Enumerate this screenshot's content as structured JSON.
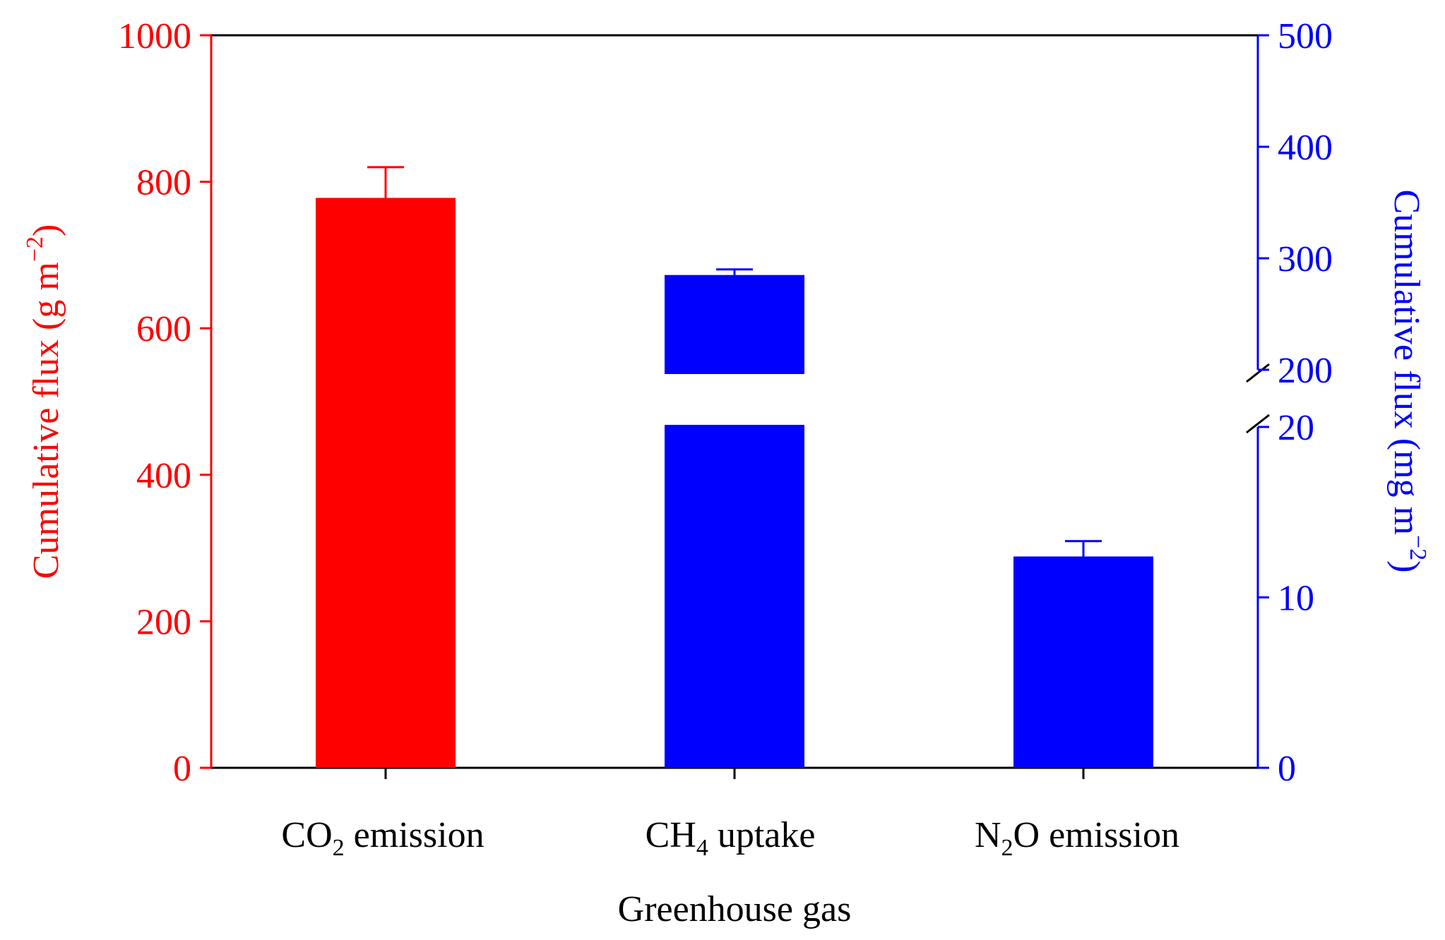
{
  "chart_data": {
    "type": "bar",
    "xlabel": "Greenhouse gas",
    "categories": [
      {
        "main": "CO",
        "sub": "2",
        "rest": " emission"
      },
      {
        "main": "CH",
        "sub": "4",
        "rest": " uptake"
      },
      {
        "main": "N",
        "sub": "2",
        "rest": "O emission"
      }
    ],
    "left_axis": {
      "label_main": "Cumulative flux (g m",
      "label_sup": "−2",
      "label_end": ")",
      "ylim": [
        0,
        1000
      ],
      "ticks": [
        "0",
        "200",
        "400",
        "600",
        "800",
        "1000"
      ],
      "color": "#ff0000"
    },
    "right_axis": {
      "label_main": "Cumulative flux (mg m",
      "label_sup": "−2",
      "label_end": ")",
      "broken": true,
      "lower_range": [
        0,
        20
      ],
      "upper_range": [
        200,
        500
      ],
      "ticks_lower": [
        "0",
        "10",
        "20"
      ],
      "ticks_upper": [
        "200",
        "300",
        "400",
        "500"
      ],
      "color": "#0000ff"
    },
    "series": [
      {
        "category": "CO2 emission",
        "axis": "left",
        "value": 778,
        "error": 42,
        "color": "#ff0000"
      },
      {
        "category": "CH4 uptake",
        "axis": "right",
        "value": 285,
        "error": 5,
        "color": "#0000ff"
      },
      {
        "category": "N2O emission",
        "axis": "right",
        "value": 12.4,
        "error": 0.9,
        "color": "#0000ff"
      }
    ],
    "grid": false,
    "legend": "none"
  }
}
